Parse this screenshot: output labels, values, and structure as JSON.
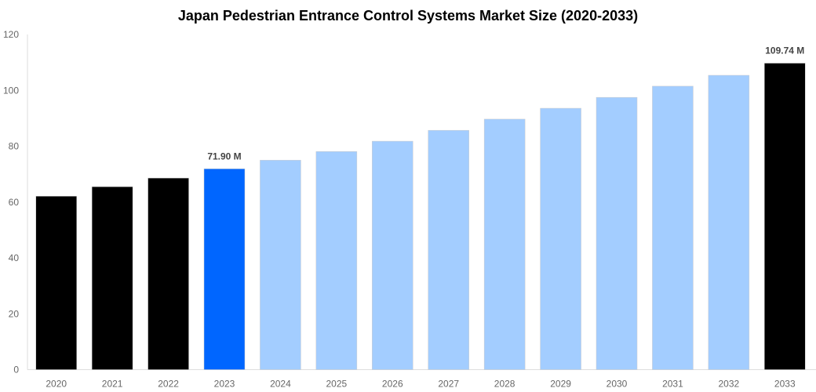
{
  "chart_data": {
    "type": "bar",
    "title": "Japan Pedestrian Entrance Control Systems Market Size (2020-2033)",
    "xlabel": "",
    "ylabel": "",
    "ylim": [
      0,
      120
    ],
    "yticks": [
      0,
      20,
      40,
      60,
      80,
      100,
      120
    ],
    "grid": false,
    "categories": [
      "2020",
      "2021",
      "2022",
      "2023",
      "2024",
      "2025",
      "2026",
      "2027",
      "2028",
      "2029",
      "2030",
      "2031",
      "2032",
      "2033"
    ],
    "values": [
      62.1,
      65.5,
      68.6,
      71.9,
      75.0,
      78.1,
      81.8,
      85.7,
      89.7,
      93.6,
      97.5,
      101.5,
      105.4,
      109.74
    ],
    "colors": [
      "#000000",
      "#000000",
      "#000000",
      "#0066ff",
      "#a3cdff",
      "#a3cdff",
      "#a3cdff",
      "#a3cdff",
      "#a3cdff",
      "#a3cdff",
      "#a3cdff",
      "#a3cdff",
      "#a3cdff",
      "#000000"
    ],
    "data_labels": {
      "3": "71.90 M",
      "13": "109.74 M"
    }
  }
}
